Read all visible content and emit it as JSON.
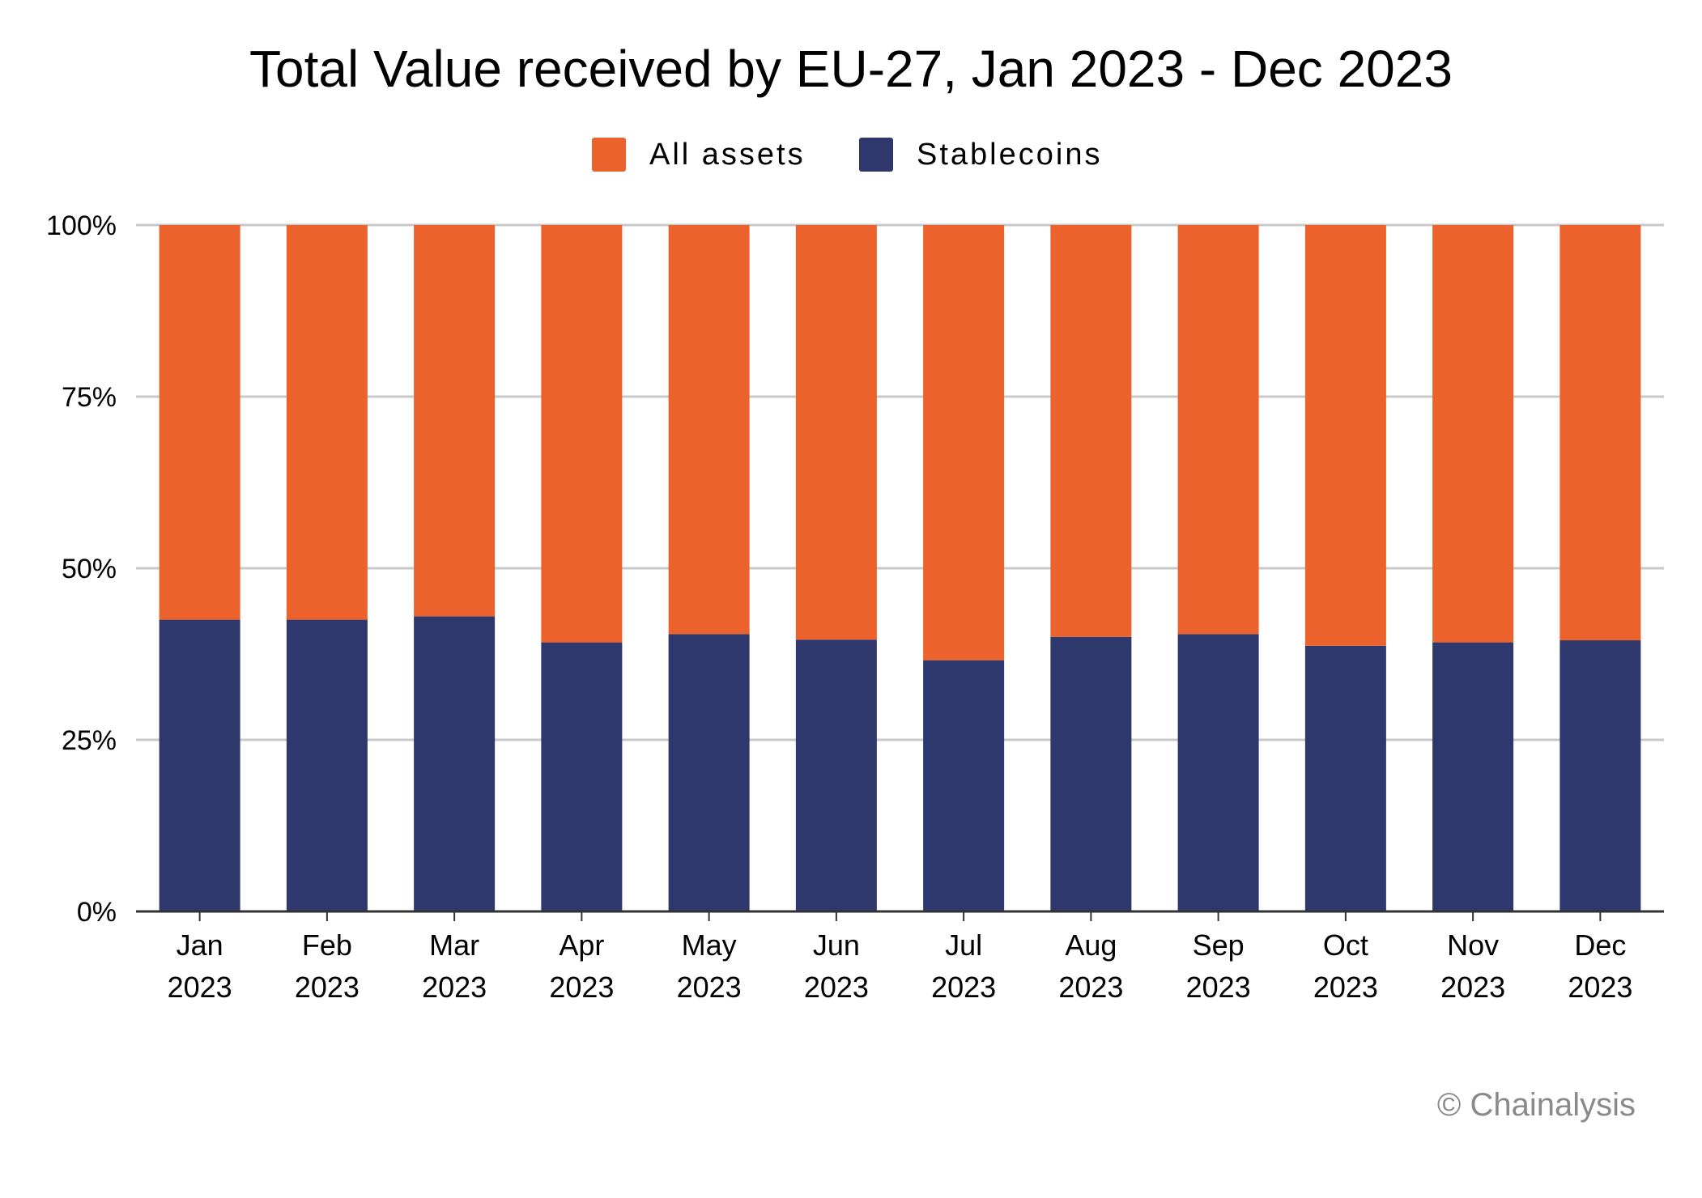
{
  "chart_data": {
    "type": "bar",
    "stacked": true,
    "title": "Total Value received by EU-27, Jan 2023 - Dec 2023",
    "categories": [
      [
        "Jan",
        "2023"
      ],
      [
        "Feb",
        "2023"
      ],
      [
        "Mar",
        "2023"
      ],
      [
        "Apr",
        "2023"
      ],
      [
        "May",
        "2023"
      ],
      [
        "Jun",
        "2023"
      ],
      [
        "Jul",
        "2023"
      ],
      [
        "Aug",
        "2023"
      ],
      [
        "Sep",
        "2023"
      ],
      [
        "Oct",
        "2023"
      ],
      [
        "Nov",
        "2023"
      ],
      [
        "Dec",
        "2023"
      ]
    ],
    "series": [
      {
        "name": "Stablecoins",
        "color": "#2e386d",
        "values": [
          42.5,
          42.5,
          43.0,
          39.2,
          40.4,
          39.6,
          36.6,
          40.0,
          40.4,
          38.7,
          39.2,
          39.5
        ]
      },
      {
        "name": "All assets",
        "color": "#ec622c",
        "values": [
          57.5,
          57.5,
          57.0,
          60.8,
          59.6,
          60.4,
          63.4,
          60.0,
          59.6,
          61.3,
          60.8,
          60.5
        ]
      }
    ],
    "legend": {
      "placement": "top-center",
      "entries": [
        {
          "name": "All assets",
          "color": "#ec622c"
        },
        {
          "name": "Stablecoins",
          "color": "#2e386d"
        }
      ]
    },
    "yticks": [
      "0%",
      "25%",
      "50%",
      "75%",
      "100%"
    ],
    "ytick_values": [
      0,
      25,
      50,
      75,
      100
    ],
    "ylim": [
      0,
      100
    ],
    "xlabel": "",
    "ylabel": "",
    "grid": true,
    "gridline_color": "#c8c8c8",
    "axis_color": "#333333"
  },
  "credit": "© Chainalysis"
}
